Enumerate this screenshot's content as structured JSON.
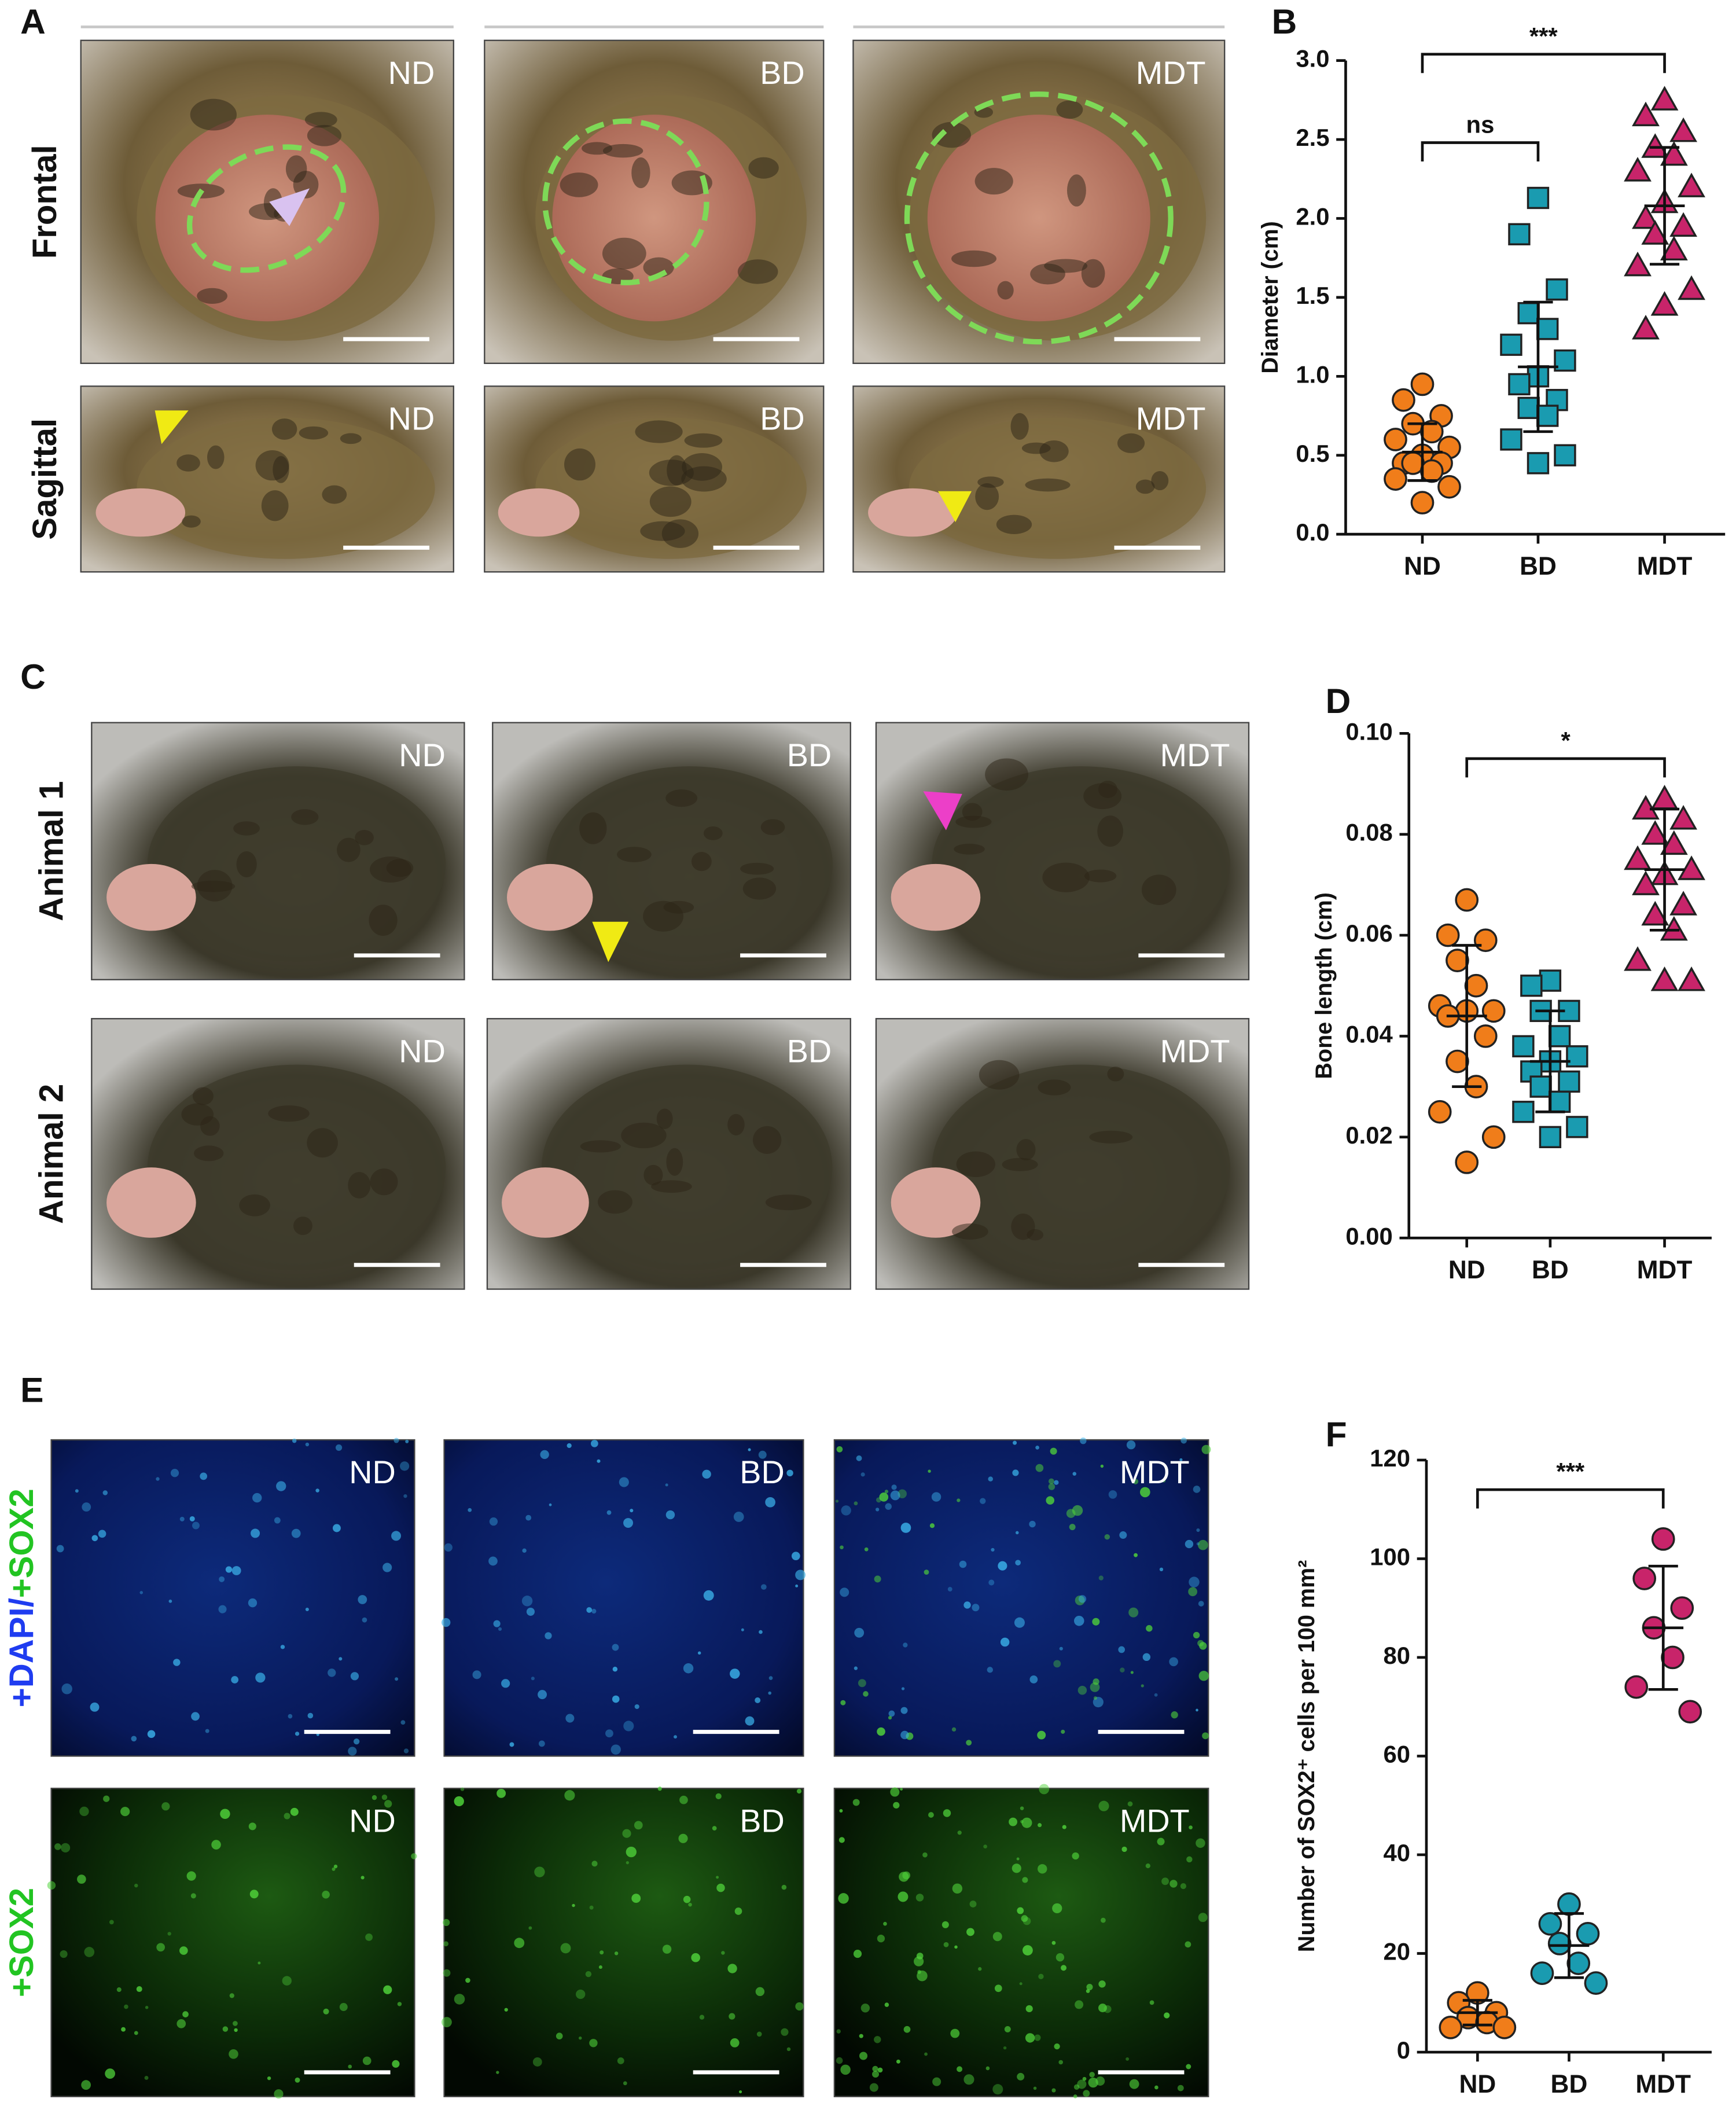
{
  "panel_labels": [
    "A",
    "B",
    "C",
    "D",
    "E",
    "F"
  ],
  "photo_panels": [
    {
      "rows": [
        {
          "label": "Frontal",
          "tiles": [
            "ND",
            "BD",
            "MDT"
          ]
        },
        {
          "label": "Sagittal",
          "tiles": [
            "ND",
            "BD",
            "MDT"
          ]
        }
      ]
    },
    {
      "rows": [
        {
          "label": "Animal 1",
          "tiles": [
            "ND",
            "BD",
            "MDT"
          ]
        },
        {
          "label": "Animal 2",
          "tiles": [
            "ND",
            "BD",
            "MDT"
          ]
        }
      ]
    },
    {
      "rows": [
        {
          "label_parts": [
            {
              "text": "+DAPI/",
              "color": "#1f3cf0"
            },
            {
              "text": "+SOX2",
              "color": "#22c422"
            }
          ],
          "tiles": [
            "ND",
            "BD",
            "MDT"
          ]
        },
        {
          "label_parts": [
            {
              "text": "+SOX2",
              "color": "#22c422"
            }
          ],
          "tiles": [
            "ND",
            "BD",
            "MDT"
          ]
        }
      ]
    }
  ],
  "chart_data": [
    {
      "type": "scatter",
      "ylabel": "Diameter (cm)",
      "categories": [
        "ND",
        "BD",
        "MDT"
      ],
      "ylim": [
        0,
        3
      ],
      "yticks": [
        {
          "value": 0,
          "label": "0.0"
        },
        0.5,
        {
          "value": 1,
          "label": "1.0"
        },
        1.5,
        {
          "value": 2,
          "label": "2.0"
        },
        2.5,
        {
          "value": 3,
          "label": "3.0"
        }
      ],
      "groups": [
        {
          "color": "#f07d1a",
          "marker": "circle",
          "values": [
            0.95,
            0.85,
            0.75,
            0.7,
            0.65,
            0.6,
            0.55,
            0.5,
            0.45,
            0.45,
            0.45,
            0.4,
            0.35,
            0.3,
            0.2
          ],
          "mean": 0.52,
          "error": 0.18
        },
        {
          "color": "#1a9bb0",
          "marker": "square",
          "values": [
            2.13,
            1.9,
            1.55,
            1.4,
            1.3,
            1.2,
            1.1,
            1.0,
            0.95,
            0.85,
            0.8,
            0.75,
            0.6,
            0.5,
            0.45
          ],
          "mean": 1.06,
          "error": 0.41
        },
        {
          "color": "#c8246a",
          "marker": "triangle",
          "values": [
            2.75,
            2.65,
            2.55,
            2.45,
            2.4,
            2.3,
            2.2,
            2.1,
            2.0,
            1.95,
            1.9,
            1.8,
            1.7,
            1.55,
            1.45,
            1.3
          ],
          "mean": 2.08,
          "error": 0.37
        }
      ],
      "brackets": [
        {
          "span": [
            0,
            2
          ],
          "y": 3.04,
          "label": "***"
        },
        {
          "span": [
            0,
            1
          ],
          "y": 2.48,
          "label": "ns"
        }
      ]
    },
    {
      "type": "scatter",
      "ylabel": "Bone length (cm)",
      "categories": [
        "ND",
        "BD",
        "MDT"
      ],
      "ylim": [
        0,
        0.1
      ],
      "yticks": [
        {
          "value": 0,
          "label": "0.00"
        },
        {
          "value": 0.02,
          "label": "0.02"
        },
        {
          "value": 0.04,
          "label": "0.04"
        },
        {
          "value": 0.06,
          "label": "0.06"
        },
        {
          "value": 0.08,
          "label": "0.08"
        },
        {
          "value": 0.1,
          "label": "0.10"
        }
      ],
      "groups": [
        {
          "color": "#f07d1a",
          "marker": "circle",
          "values": [
            0.067,
            0.06,
            0.059,
            0.055,
            0.05,
            0.046,
            0.045,
            0.045,
            0.044,
            0.04,
            0.035,
            0.03,
            0.025,
            0.02,
            0.015
          ],
          "mean": 0.044,
          "error": 0.014
        },
        {
          "color": "#1a9bb0",
          "marker": "square",
          "values": [
            0.051,
            0.05,
            0.045,
            0.045,
            0.04,
            0.038,
            0.036,
            0.035,
            0.033,
            0.031,
            0.03,
            0.027,
            0.025,
            0.022,
            0.02
          ],
          "mean": 0.035,
          "error": 0.01
        },
        {
          "color": "#c8246a",
          "marker": "triangle",
          "values": [
            0.087,
            0.085,
            0.083,
            0.08,
            0.078,
            0.075,
            0.073,
            0.072,
            0.07,
            0.066,
            0.064,
            0.061,
            0.055,
            0.051,
            0.051
          ],
          "mean": 0.073,
          "error": 0.012
        }
      ],
      "brackets": [
        {
          "span": [
            0,
            2
          ],
          "y": 0.095,
          "label": "*"
        }
      ]
    },
    {
      "type": "scatter",
      "ylabel": "Number of SOX2⁺ cells per 100 mm²",
      "categories": [
        "ND",
        "BD",
        "MDT"
      ],
      "ylim": [
        0,
        120
      ],
      "yticks": [
        0,
        20,
        40,
        60,
        80,
        100,
        120
      ],
      "groups": [
        {
          "color": "#f07d1a",
          "marker": "circle",
          "values": [
            12,
            10,
            8,
            7,
            6,
            5,
            5
          ],
          "mean": 8,
          "error": 2.5
        },
        {
          "color": "#1a9bb0",
          "marker": "circle",
          "values": [
            30,
            26,
            24,
            22,
            18,
            16,
            14
          ],
          "mean": 21.6,
          "error": 6.5
        },
        {
          "color": "#c8246a",
          "marker": "circle",
          "values": [
            104,
            96,
            90,
            86,
            80,
            74,
            69
          ],
          "mean": 86,
          "error": 12.5
        }
      ],
      "brackets": [
        {
          "span": [
            0,
            2
          ],
          "y": 114,
          "label": "***"
        }
      ]
    }
  ]
}
